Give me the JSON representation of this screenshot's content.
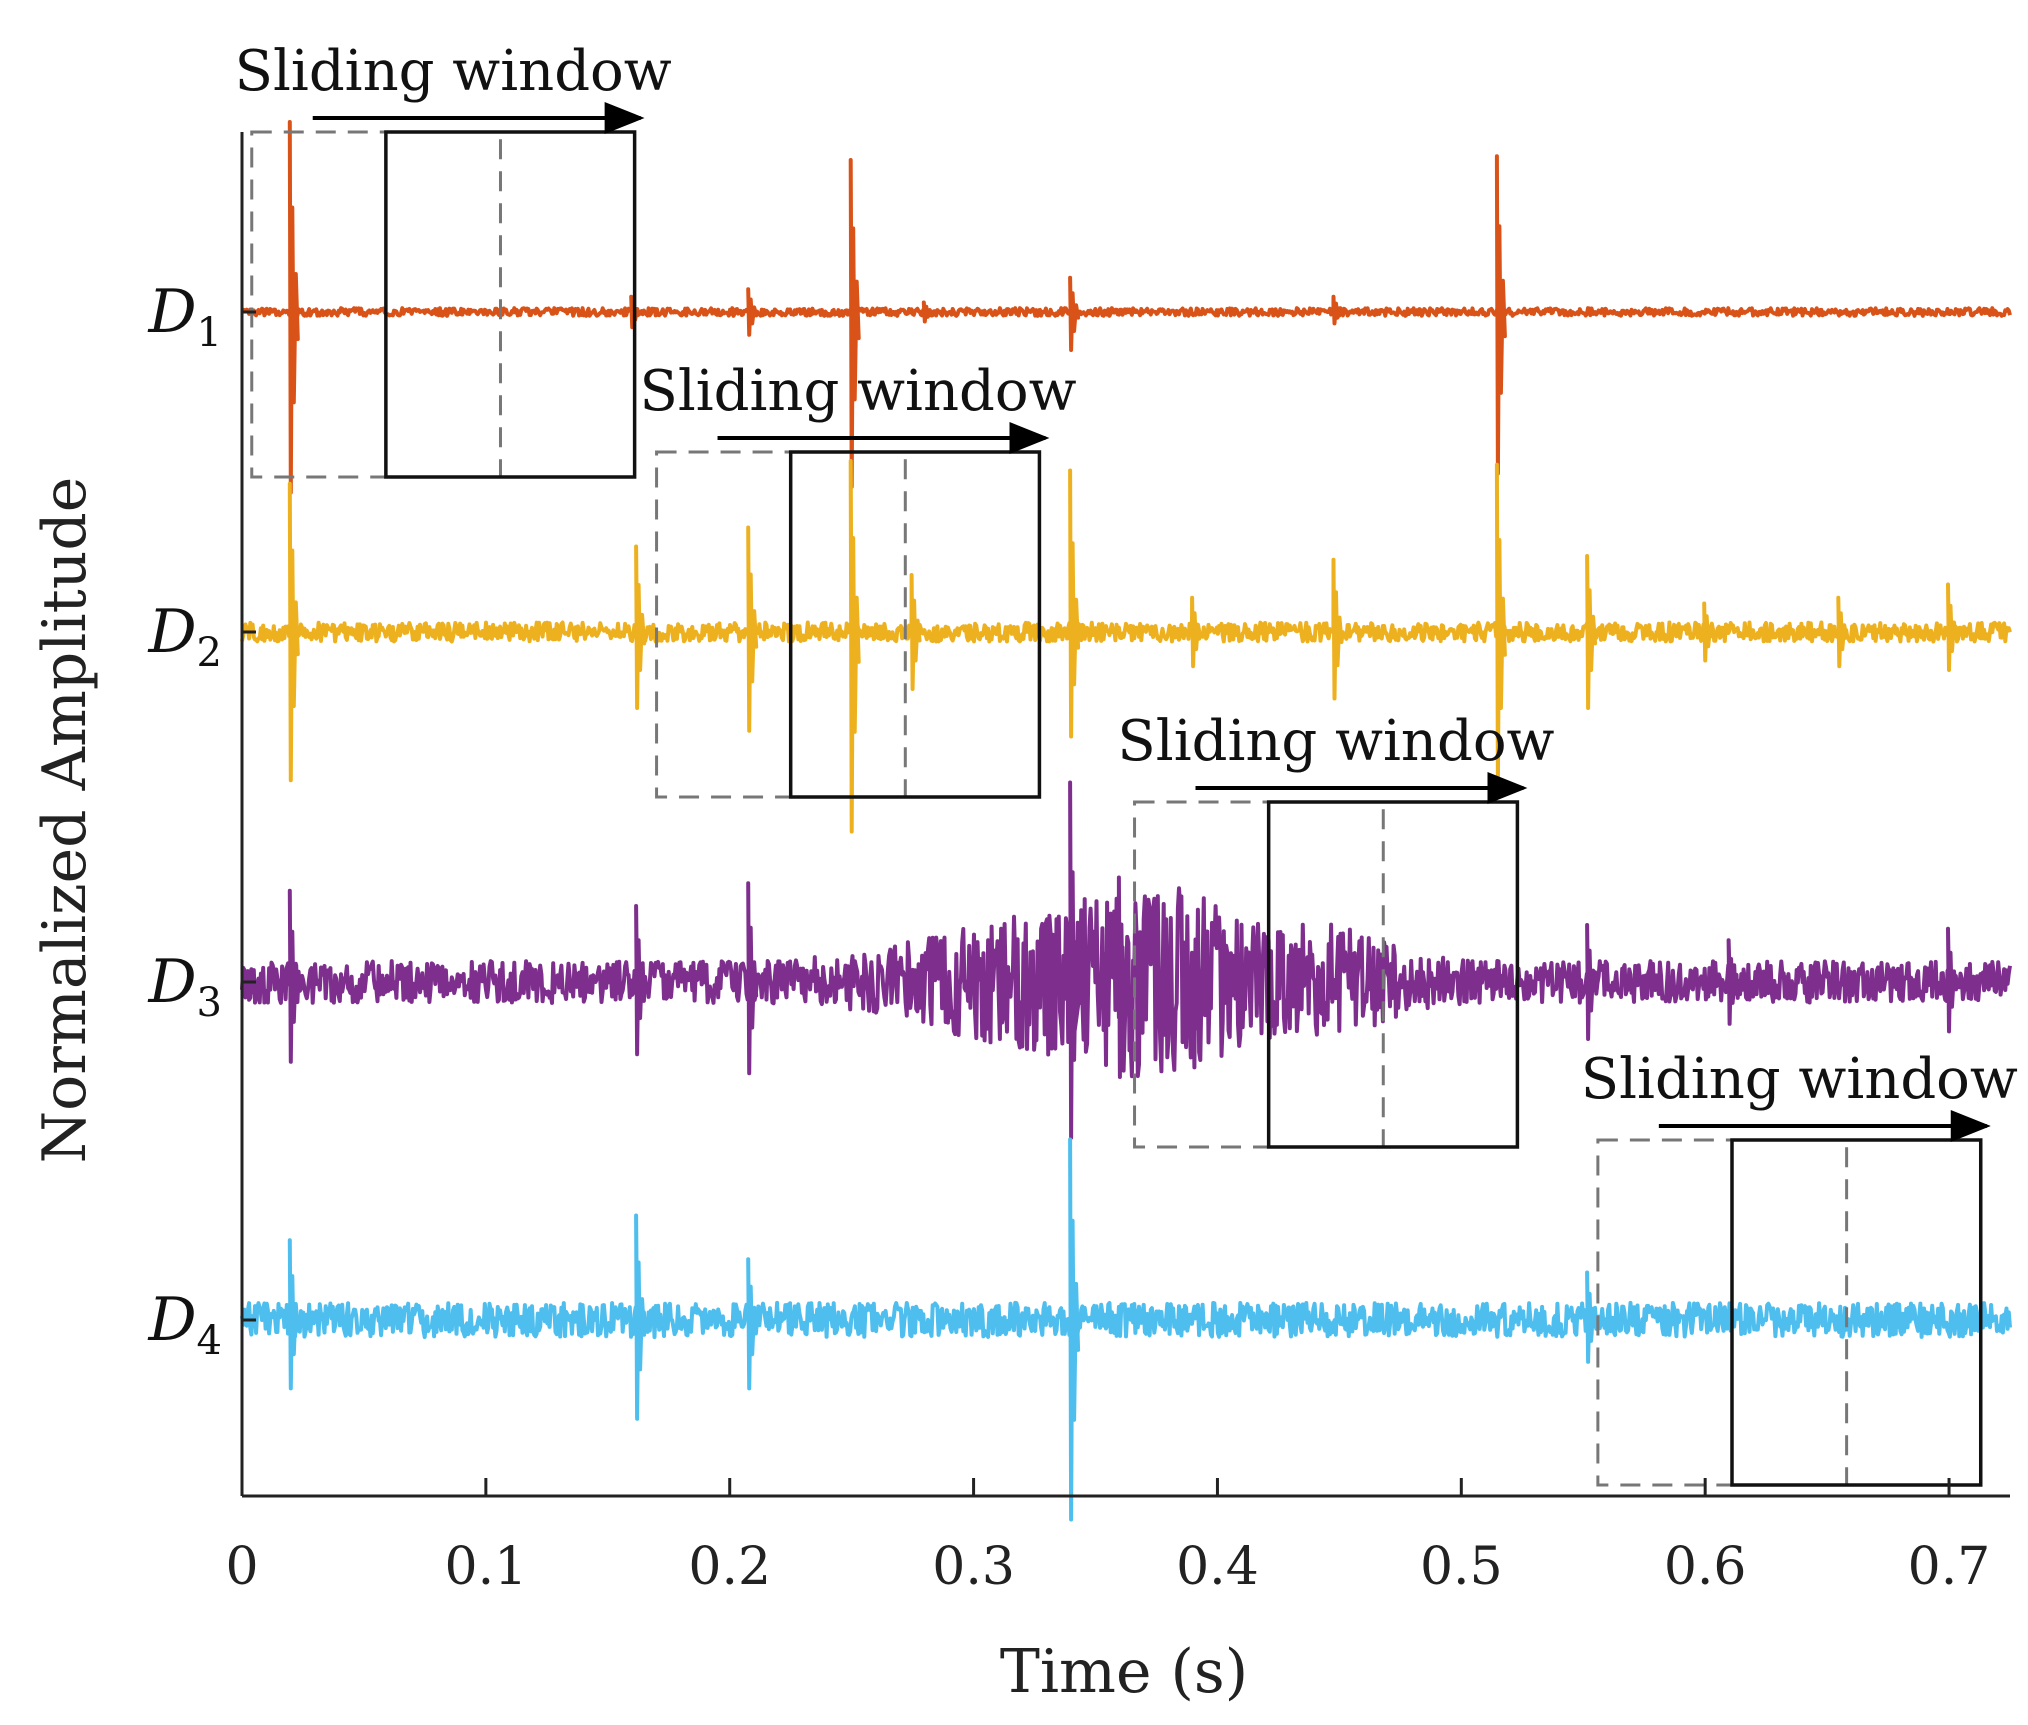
{
  "chart_data": {
    "type": "line",
    "title": "",
    "xlabel": "Time (s)",
    "ylabel": "Normalized Amplitude",
    "xlim": [
      0,
      0.725
    ],
    "xticks": [
      0,
      0.1,
      0.2,
      0.3,
      0.4,
      0.5,
      0.6,
      0.7
    ],
    "xtick_labels": [
      "0",
      "0.1",
      "0.2",
      "0.3",
      "0.4",
      "0.5",
      "0.6",
      "0.7"
    ],
    "series": [
      {
        "name": "D",
        "subscript": "1",
        "color": "#D95319",
        "noise": 0.02,
        "spikes": [
          {
            "t": 0.02,
            "up": 1.0,
            "down": 0.95
          },
          {
            "t": 0.25,
            "up": 0.8,
            "down": 0.92
          },
          {
            "t": 0.515,
            "up": 0.82,
            "down": 0.85
          },
          {
            "t": 0.208,
            "up": 0.12,
            "down": 0.12
          },
          {
            "t": 0.34,
            "up": 0.18,
            "down": 0.2
          },
          {
            "t": 0.16,
            "up": 0.08,
            "down": 0.08
          },
          {
            "t": 0.28,
            "up": 0.05,
            "down": 0.05
          },
          {
            "t": 0.448,
            "up": 0.08,
            "down": 0.06
          }
        ],
        "bursts": []
      },
      {
        "name": "D",
        "subscript": "2",
        "color": "#EDB120",
        "noise": 0.05,
        "spikes": [
          {
            "t": 0.02,
            "up": 0.78,
            "down": 0.78
          },
          {
            "t": 0.162,
            "up": 0.45,
            "down": 0.4
          },
          {
            "t": 0.208,
            "up": 0.55,
            "down": 0.52
          },
          {
            "t": 0.25,
            "up": 0.9,
            "down": 1.05
          },
          {
            "t": 0.275,
            "up": 0.3,
            "down": 0.3
          },
          {
            "t": 0.34,
            "up": 0.85,
            "down": 0.55
          },
          {
            "t": 0.39,
            "up": 0.18,
            "down": 0.18
          },
          {
            "t": 0.448,
            "up": 0.38,
            "down": 0.35
          },
          {
            "t": 0.515,
            "up": 0.88,
            "down": 0.8
          },
          {
            "t": 0.552,
            "up": 0.4,
            "down": 0.4
          },
          {
            "t": 0.6,
            "up": 0.15,
            "down": 0.15
          },
          {
            "t": 0.655,
            "up": 0.18,
            "down": 0.18
          },
          {
            "t": 0.7,
            "up": 0.25,
            "down": 0.2
          }
        ],
        "bursts": []
      },
      {
        "name": "D",
        "subscript": "3",
        "color": "#7E2F8E",
        "noise": 0.11,
        "spikes": [
          {
            "t": 0.02,
            "up": 0.48,
            "down": 0.42
          },
          {
            "t": 0.162,
            "up": 0.4,
            "down": 0.38
          },
          {
            "t": 0.208,
            "up": 0.52,
            "down": 0.48
          },
          {
            "t": 0.34,
            "up": 1.05,
            "down": 0.82
          },
          {
            "t": 0.36,
            "up": 0.55,
            "down": 0.5
          },
          {
            "t": 0.552,
            "up": 0.3,
            "down": 0.3
          },
          {
            "t": 0.61,
            "up": 0.22,
            "down": 0.22
          },
          {
            "t": 0.7,
            "up": 0.28,
            "down": 0.26
          }
        ],
        "bursts": [
          {
            "t": 0.338,
            "amp": 0.27,
            "width": 0.065
          },
          {
            "t": 0.385,
            "amp": 0.22,
            "width": 0.035
          },
          {
            "t": 0.448,
            "amp": 0.17,
            "width": 0.03
          }
        ]
      },
      {
        "name": "D",
        "subscript": "4",
        "color": "#4DBEEE",
        "noise": 0.09,
        "spikes": [
          {
            "t": 0.02,
            "up": 0.42,
            "down": 0.36
          },
          {
            "t": 0.162,
            "up": 0.55,
            "down": 0.52
          },
          {
            "t": 0.208,
            "up": 0.32,
            "down": 0.36
          },
          {
            "t": 0.34,
            "up": 0.95,
            "down": 1.05
          },
          {
            "t": 0.552,
            "up": 0.25,
            "down": 0.22
          }
        ],
        "bursts": []
      }
    ],
    "annotations": [
      {
        "label": "Sliding window",
        "channel": 0,
        "dashed": [
          0.004,
          0.106
        ],
        "solid": [
          0.059,
          0.161
        ]
      },
      {
        "label": "Sliding window",
        "channel": 1,
        "dashed": [
          0.17,
          0.272
        ],
        "solid": [
          0.225,
          0.327
        ]
      },
      {
        "label": "Sliding window",
        "channel": 2,
        "dashed": [
          0.366,
          0.468
        ],
        "solid": [
          0.421,
          0.523
        ]
      },
      {
        "label": "Sliding window",
        "channel": 3,
        "dashed": [
          0.556,
          0.658
        ],
        "solid": [
          0.611,
          0.713
        ]
      }
    ]
  }
}
